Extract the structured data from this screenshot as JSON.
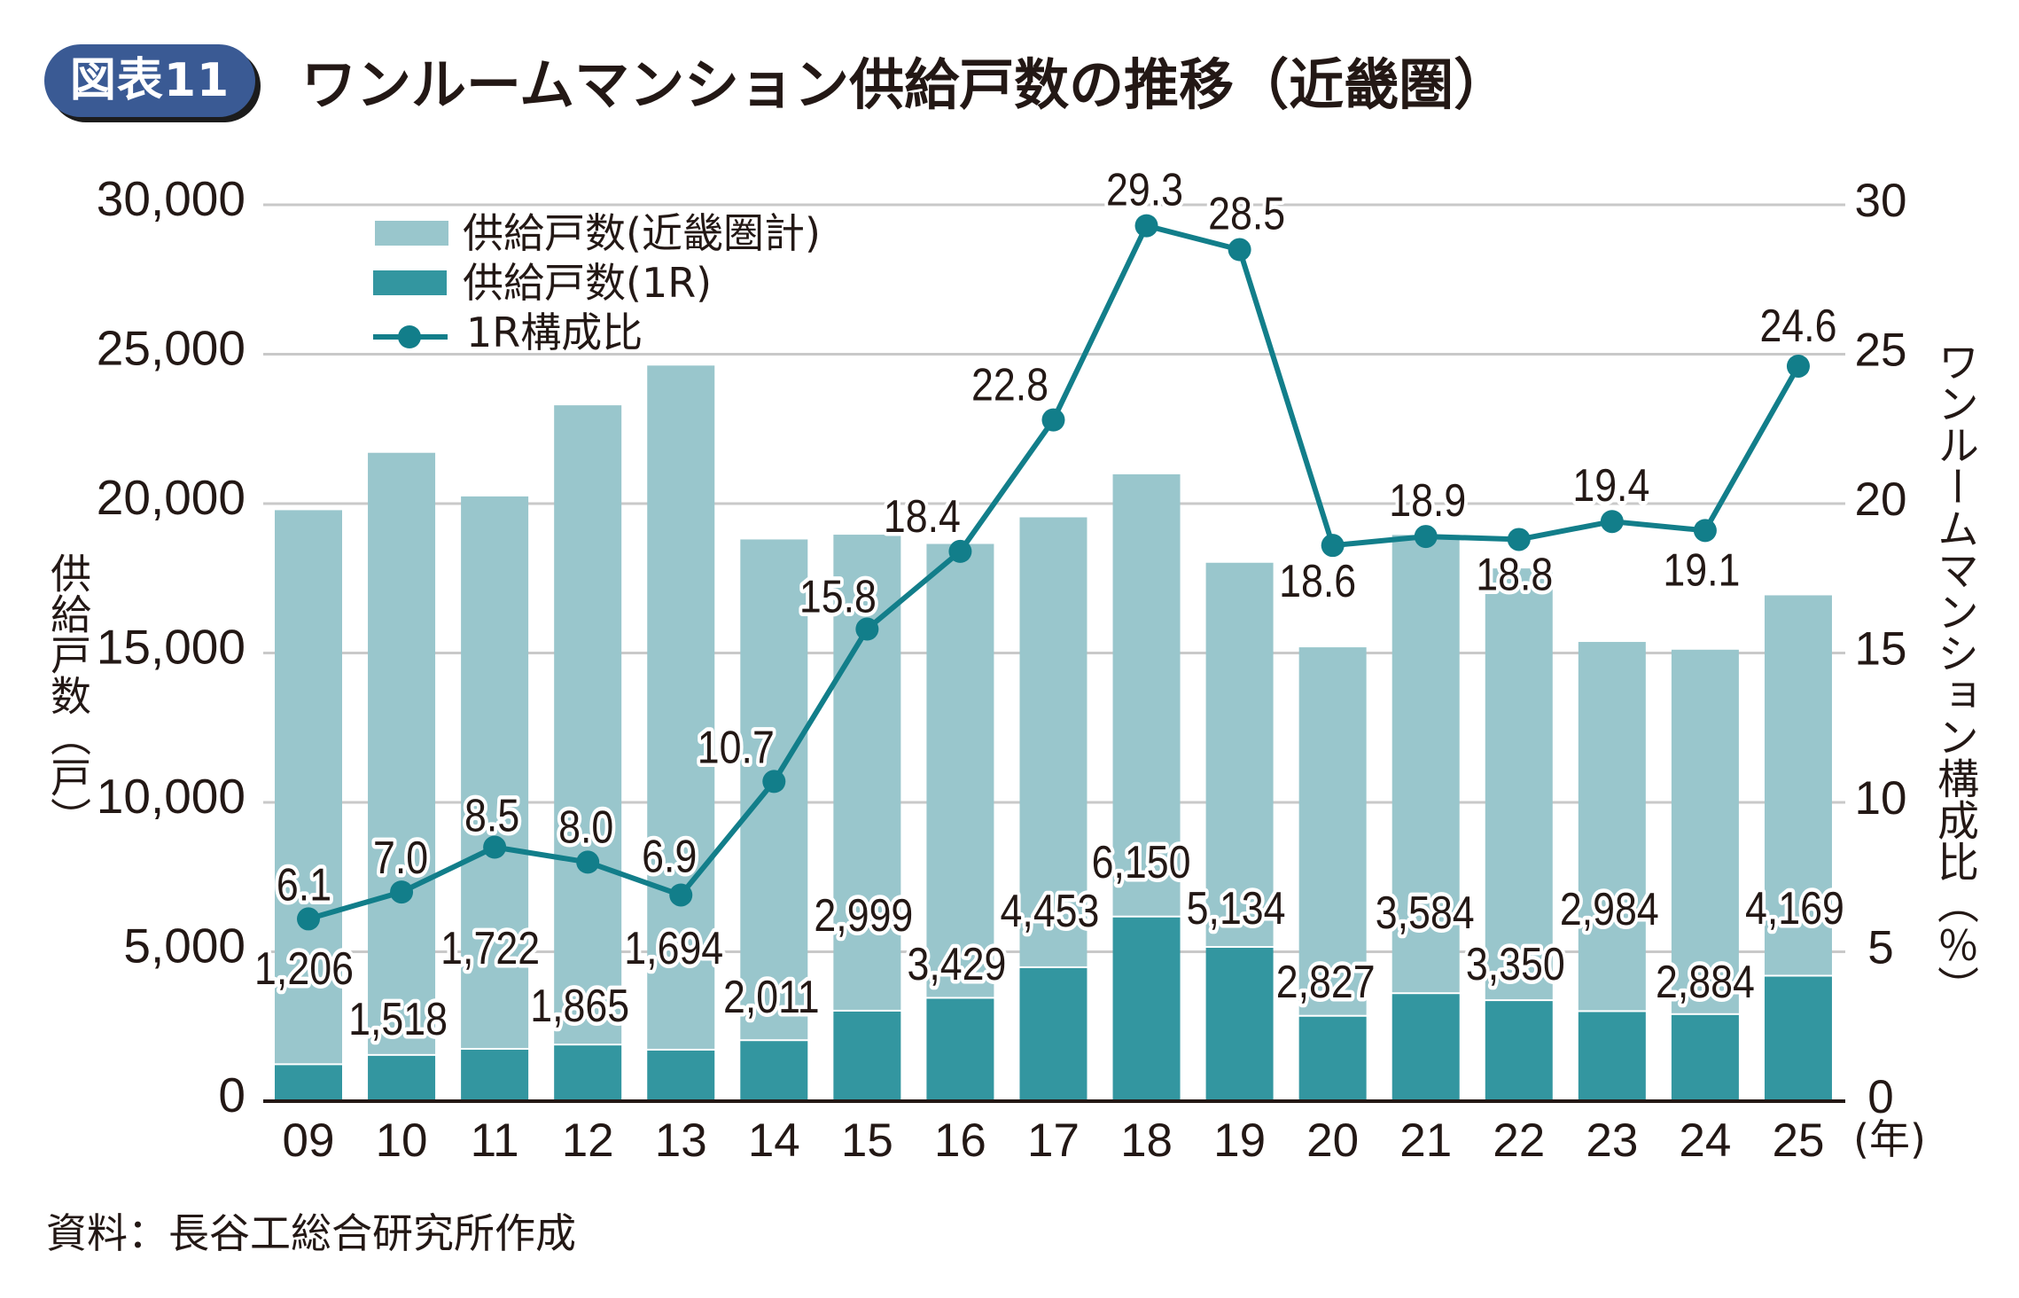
{
  "header": {
    "badge": "図表11",
    "title": "ワンルームマンション供給戸数の推移（近畿圏）"
  },
  "source": "資料：長谷工総合研究所作成",
  "colors": {
    "badge": "#3a5a94",
    "total_bar": "#99c6cc",
    "r1_bar": "#3396a0",
    "ratio_line": "#127e8a",
    "grid": "#c9c9c9",
    "axis": "#231815",
    "text": "#231815"
  },
  "chart_data": {
    "type": "bar",
    "title": "ワンルームマンション供給戸数の推移（近畿圏）",
    "categories": [
      "09",
      "10",
      "11",
      "12",
      "13",
      "14",
      "15",
      "16",
      "17",
      "18",
      "19",
      "20",
      "21",
      "22",
      "23",
      "24",
      "25"
    ],
    "x_unit": "(年)",
    "xlabel": "",
    "ylabel": "供給戸数（戸）",
    "y2label": "ワンルームマンション構成比（％）",
    "ylim": [
      0,
      30000
    ],
    "y_ticks": [
      0,
      5000,
      10000,
      15000,
      20000,
      25000,
      30000
    ],
    "y_tick_labels": [
      "0",
      "5,000",
      "10,000",
      "15,000",
      "20,000",
      "25,000",
      "30,000"
    ],
    "y2lim": [
      0,
      30
    ],
    "y2_ticks": [
      0,
      5,
      10,
      15,
      20,
      25,
      30
    ],
    "y2_tick_labels": [
      "0",
      "5",
      "10",
      "15",
      "20",
      "25",
      "30"
    ],
    "grid": true,
    "legend_position": "top-left",
    "series": [
      {
        "name": "供給戸数(近畿圏計)",
        "type": "bar",
        "axis": "left",
        "values": [
          19780,
          21700,
          20240,
          23290,
          24620,
          18800,
          18960,
          18650,
          19540,
          20980,
          18020,
          15190,
          18950,
          17830,
          15370,
          15110,
          16930
        ]
      },
      {
        "name": "供給戸数(1R)",
        "type": "bar",
        "axis": "left",
        "values": [
          1206,
          1518,
          1722,
          1865,
          1694,
          2011,
          2999,
          3429,
          4453,
          6150,
          5134,
          2827,
          3584,
          3350,
          2984,
          2884,
          4169
        ],
        "labels": [
          "1,206",
          "1,518",
          "1,722",
          "1,865",
          "1,694",
          "2,011",
          "2,999",
          "3,429",
          "4,453",
          "6,150",
          "5,134",
          "2,827",
          "3,584",
          "3,350",
          "2,984",
          "2,884",
          "4,169"
        ]
      },
      {
        "name": "1R構成比",
        "type": "line",
        "axis": "right",
        "values": [
          6.1,
          7.0,
          8.5,
          8.0,
          6.9,
          10.7,
          15.8,
          18.4,
          22.8,
          29.3,
          28.5,
          18.6,
          18.9,
          18.8,
          19.4,
          19.1,
          24.6
        ],
        "labels": [
          "6.1",
          "7.0",
          "8.5",
          "8.0",
          "6.9",
          "10.7",
          "15.8",
          "18.4",
          "22.8",
          "29.3",
          "28.5",
          "18.6",
          "18.9",
          "18.8",
          "19.4",
          "19.1",
          "24.6"
        ]
      }
    ]
  }
}
